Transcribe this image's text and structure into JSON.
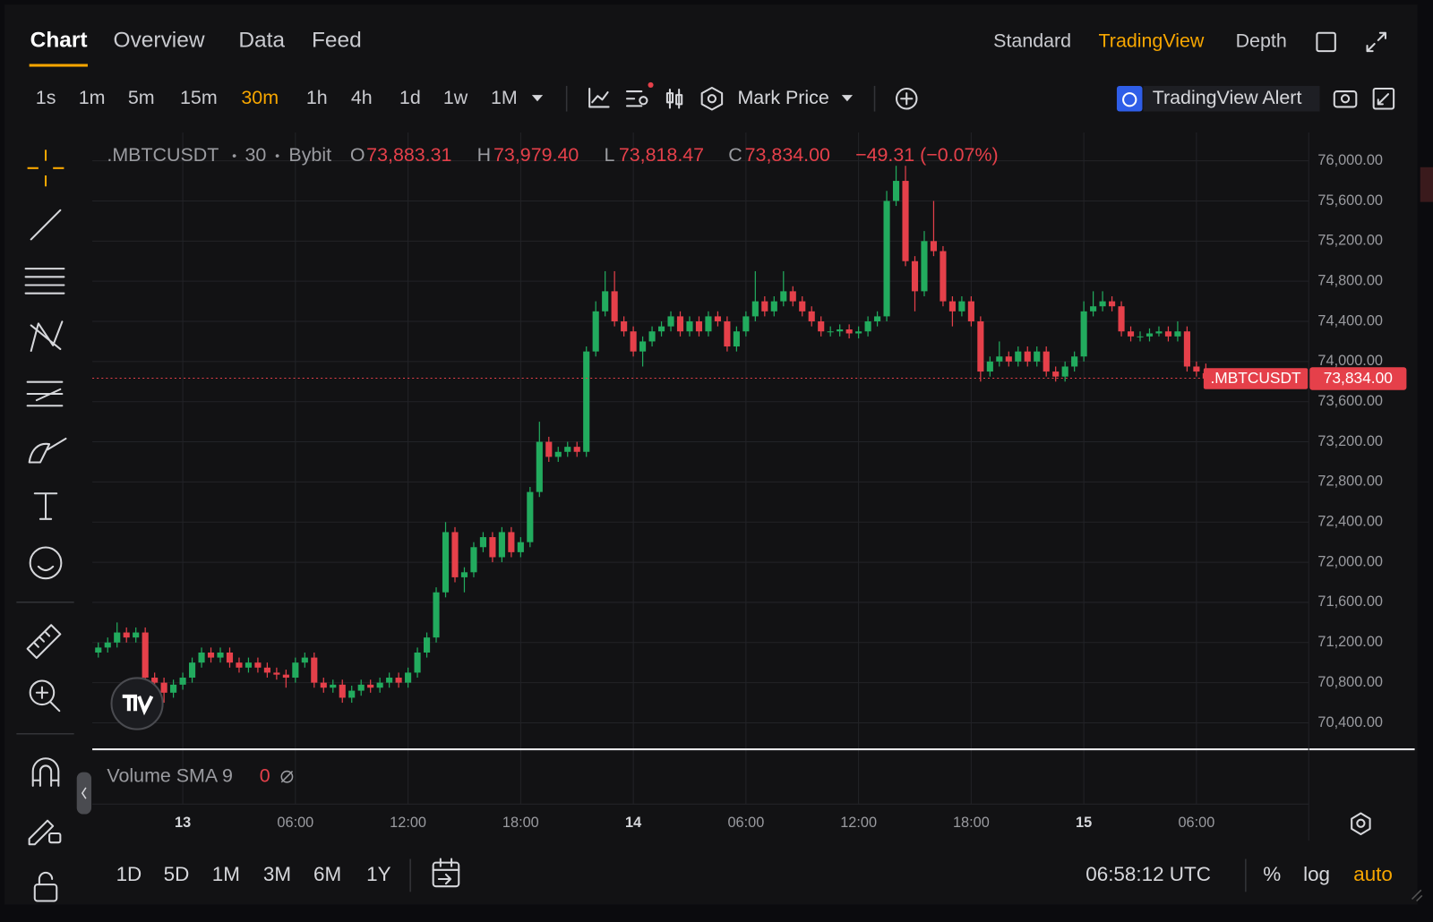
{
  "tabs": [
    "Chart",
    "Overview",
    "Data",
    "Feed"
  ],
  "views": [
    "Standard",
    "TradingView",
    "Depth"
  ],
  "intervals": [
    "1s",
    "1m",
    "5m",
    "15m",
    "30m",
    "1h",
    "4h",
    "1d",
    "1w",
    "1M"
  ],
  "price_type": "Mark Price",
  "alert": "TradingView Alert",
  "volume_indicator": {
    "name": "Volume SMA 9",
    "value": 0
  },
  "ranges": [
    "1D",
    "5D",
    "1M",
    "3M",
    "6M",
    "1Y"
  ],
  "clock": "06:58:12 UTC",
  "scale_options": [
    "%",
    "log",
    "auto"
  ],
  "chart_data": {
    "type": "candlestick",
    "symbol": ".MBTCUSDT",
    "interval": "30",
    "exchange": "Bybit",
    "header_separator": "•",
    "ohlc_keys": [
      "O",
      "H",
      "L",
      "C"
    ],
    "last_labels": [
      "73,883.31",
      "73,979.40",
      "73,818.47",
      "73,834.00"
    ],
    "change_label": "−49.31 (−0.07%)",
    "up_color": "#22ab5e",
    "down_color": "#e5404a",
    "grid": true,
    "ylim": [
      70136,
      76282
    ],
    "yticks": [
      {
        "value": 70400,
        "label": "70,400.00"
      },
      {
        "value": 70800,
        "label": "70,800.00"
      },
      {
        "value": 71200,
        "label": "71,200.00"
      },
      {
        "value": 71600,
        "label": "71,600.00"
      },
      {
        "value": 72000,
        "label": "72,000.00"
      },
      {
        "value": 72400,
        "label": "72,400.00"
      },
      {
        "value": 72800,
        "label": "72,800.00"
      },
      {
        "value": 73200,
        "label": "73,200.00"
      },
      {
        "value": 73600,
        "label": "73,600.00"
      },
      {
        "value": 74000,
        "label": "74,000.00"
      },
      {
        "value": 74400,
        "label": "74,400.00"
      },
      {
        "value": 74800,
        "label": "74,800.00"
      },
      {
        "value": 75200,
        "label": "75,200.00"
      },
      {
        "value": 75600,
        "label": "75,600.00"
      },
      {
        "value": 76000,
        "label": "76,000.00"
      }
    ],
    "xlim": [
      -0.64,
      128.96
    ],
    "xticks": [
      {
        "value": 9,
        "label": "13"
      },
      {
        "value": 21,
        "label": "06:00"
      },
      {
        "value": 33,
        "label": "12:00"
      },
      {
        "value": 45,
        "label": "18:00"
      },
      {
        "value": 57,
        "label": "14"
      },
      {
        "value": 69,
        "label": "06:00"
      },
      {
        "value": 81,
        "label": "12:00"
      },
      {
        "value": 93,
        "label": "18:00"
      },
      {
        "value": 105,
        "label": "15"
      },
      {
        "value": 117,
        "label": "06:00"
      }
    ],
    "candles": [
      [
        71100,
        71200,
        71050,
        71150
      ],
      [
        71150,
        71250,
        71100,
        71200
      ],
      [
        71200,
        71400,
        71150,
        71300
      ],
      [
        71300,
        71350,
        71200,
        71250
      ],
      [
        71250,
        71350,
        71200,
        71300
      ],
      [
        71300,
        71350,
        70800,
        70850
      ],
      [
        70850,
        70900,
        70700,
        70800
      ],
      [
        70800,
        70850,
        70600,
        70700
      ],
      [
        70700,
        70830,
        70650,
        70780
      ],
      [
        70780,
        70900,
        70730,
        70850
      ],
      [
        70850,
        71050,
        70800,
        71000
      ],
      [
        71000,
        71150,
        70950,
        71100
      ],
      [
        71100,
        71150,
        71000,
        71050
      ],
      [
        71050,
        71150,
        71000,
        71100
      ],
      [
        71100,
        71150,
        70950,
        71000
      ],
      [
        71000,
        71050,
        70900,
        70950
      ],
      [
        70950,
        71050,
        70900,
        71000
      ],
      [
        71000,
        71050,
        70900,
        70950
      ],
      [
        70950,
        71000,
        70850,
        70900
      ],
      [
        70900,
        70950,
        70830,
        70880
      ],
      [
        70880,
        70930,
        70750,
        70850
      ],
      [
        70850,
        71050,
        70800,
        71000
      ],
      [
        71000,
        71100,
        70950,
        71050
      ],
      [
        71050,
        71100,
        70750,
        70800
      ],
      [
        70800,
        70850,
        70700,
        70750
      ],
      [
        70750,
        70830,
        70700,
        70780
      ],
      [
        70780,
        70830,
        70600,
        70650
      ],
      [
        70650,
        70770,
        70600,
        70720
      ],
      [
        70720,
        70830,
        70670,
        70780
      ],
      [
        70780,
        70830,
        70700,
        70750
      ],
      [
        70750,
        70850,
        70700,
        70800
      ],
      [
        70800,
        70900,
        70750,
        70850
      ],
      [
        70850,
        70900,
        70750,
        70800
      ],
      [
        70800,
        70950,
        70750,
        70900
      ],
      [
        70900,
        71150,
        70850,
        71100
      ],
      [
        71100,
        71300,
        71050,
        71250
      ],
      [
        71250,
        71750,
        71200,
        71700
      ],
      [
        71700,
        72400,
        71650,
        72300
      ],
      [
        72300,
        72350,
        71800,
        71850
      ],
      [
        71850,
        71950,
        71700,
        71900
      ],
      [
        71900,
        72200,
        71850,
        72150
      ],
      [
        72150,
        72300,
        72100,
        72250
      ],
      [
        72250,
        72300,
        72000,
        72050
      ],
      [
        72050,
        72350,
        72000,
        72300
      ],
      [
        72300,
        72350,
        72050,
        72100
      ],
      [
        72100,
        72250,
        72050,
        72200
      ],
      [
        72200,
        72750,
        72150,
        72700
      ],
      [
        72700,
        73400,
        72650,
        73200
      ],
      [
        73200,
        73250,
        73000,
        73050
      ],
      [
        73050,
        73150,
        73000,
        73100
      ],
      [
        73100,
        73200,
        73050,
        73150
      ],
      [
        73150,
        73200,
        73050,
        73100
      ],
      [
        73100,
        74150,
        73050,
        74100
      ],
      [
        74100,
        74600,
        74050,
        74500
      ],
      [
        74500,
        74900,
        74450,
        74700
      ],
      [
        74700,
        74900,
        74350,
        74400
      ],
      [
        74400,
        74450,
        74250,
        74300
      ],
      [
        74300,
        74350,
        74050,
        74100
      ],
      [
        74100,
        74250,
        73950,
        74200
      ],
      [
        74200,
        74350,
        74150,
        74300
      ],
      [
        74300,
        74400,
        74250,
        74350
      ],
      [
        74350,
        74500,
        74300,
        74450
      ],
      [
        74450,
        74500,
        74250,
        74300
      ],
      [
        74300,
        74450,
        74250,
        74400
      ],
      [
        74400,
        74450,
        74250,
        74300
      ],
      [
        74300,
        74500,
        74250,
        74450
      ],
      [
        74450,
        74500,
        74350,
        74400
      ],
      [
        74400,
        74450,
        74100,
        74150
      ],
      [
        74150,
        74350,
        74100,
        74300
      ],
      [
        74300,
        74500,
        74250,
        74450
      ],
      [
        74450,
        74900,
        74400,
        74600
      ],
      [
        74600,
        74650,
        74450,
        74500
      ],
      [
        74500,
        74650,
        74450,
        74600
      ],
      [
        74600,
        74900,
        74550,
        74700
      ],
      [
        74700,
        74750,
        74550,
        74600
      ],
      [
        74600,
        74650,
        74450,
        74500
      ],
      [
        74500,
        74550,
        74350,
        74400
      ],
      [
        74400,
        74450,
        74250,
        74300
      ],
      [
        74300,
        74350,
        74250,
        74300
      ],
      [
        74300,
        74370,
        74250,
        74320
      ],
      [
        74320,
        74370,
        74230,
        74280
      ],
      [
        74280,
        74350,
        74230,
        74300
      ],
      [
        74300,
        74450,
        74250,
        74400
      ],
      [
        74400,
        74500,
        74350,
        74450
      ],
      [
        74450,
        75700,
        74400,
        75600
      ],
      [
        75600,
        75950,
        75550,
        75800
      ],
      [
        75800,
        75950,
        74950,
        75000
      ],
      [
        75000,
        75050,
        74500,
        74700
      ],
      [
        74700,
        75300,
        74650,
        75200
      ],
      [
        75200,
        75600,
        75050,
        75100
      ],
      [
        75100,
        75150,
        74550,
        74600
      ],
      [
        74600,
        74650,
        74350,
        74500
      ],
      [
        74500,
        74650,
        74450,
        74600
      ],
      [
        74600,
        74650,
        74350,
        74400
      ],
      [
        74400,
        74450,
        73800,
        73900
      ],
      [
        73900,
        74050,
        73850,
        74000
      ],
      [
        74000,
        74200,
        73950,
        74050
      ],
      [
        74050,
        74100,
        73950,
        74000
      ],
      [
        74000,
        74150,
        73950,
        74100
      ],
      [
        74100,
        74150,
        73950,
        74000
      ],
      [
        74000,
        74150,
        73950,
        74100
      ],
      [
        74100,
        74150,
        73850,
        73900
      ],
      [
        73900,
        73950,
        73800,
        73850
      ],
      [
        73850,
        74000,
        73800,
        73950
      ],
      [
        73950,
        74100,
        73900,
        74050
      ],
      [
        74050,
        74600,
        74000,
        74500
      ],
      [
        74500,
        74700,
        74450,
        74550
      ],
      [
        74550,
        74700,
        74500,
        74600
      ],
      [
        74600,
        74650,
        74500,
        74550
      ],
      [
        74550,
        74600,
        74250,
        74300
      ],
      [
        74300,
        74350,
        74200,
        74250
      ],
      [
        74250,
        74300,
        74200,
        74250
      ],
      [
        74250,
        74330,
        74200,
        74280
      ],
      [
        74280,
        74350,
        74250,
        74300
      ],
      [
        74300,
        74350,
        74200,
        74250
      ],
      [
        74250,
        74400,
        74200,
        74300
      ],
      [
        74300,
        74350,
        73900,
        73950
      ],
      [
        73950,
        74000,
        73850,
        73900
      ],
      [
        73883.31,
        73979.4,
        73818.47,
        73834
      ]
    ]
  }
}
